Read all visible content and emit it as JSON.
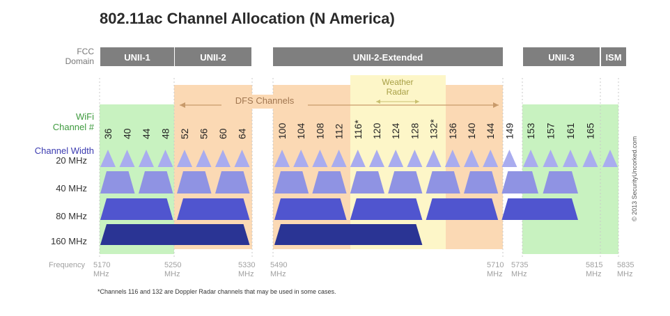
{
  "title": "802.11ac Channel Allocation (N America)",
  "row_labels": {
    "fcc_domain": [
      "FCC",
      "Domain"
    ],
    "wifi_channel": [
      "WiFi",
      "Channel #"
    ],
    "channel_width": "Channel Width",
    "frequency": "Frequency"
  },
  "domains": [
    {
      "label": "UNII-1"
    },
    {
      "label": "UNII-2"
    },
    {
      "label": "UNII-2-Extended"
    },
    {
      "label": "UNII-3"
    },
    {
      "label": "ISM"
    }
  ],
  "dfs_label": "DFS Channels",
  "weather_label": [
    "Weather",
    "Radar"
  ],
  "channels": [
    "36",
    "40",
    "44",
    "48",
    "52",
    "56",
    "60",
    "64",
    "100",
    "104",
    "108",
    "112",
    "116*",
    "120",
    "124",
    "128",
    "132*",
    "136",
    "140",
    "144",
    "149",
    "153",
    "157",
    "161",
    "165"
  ],
  "widths": [
    {
      "label": "20 MHz"
    },
    {
      "label": "40 MHz"
    },
    {
      "label": "80 MHz"
    },
    {
      "label": "160 MHz"
    }
  ],
  "frequencies": [
    {
      "value": "5170",
      "unit": "MHz"
    },
    {
      "value": "5250",
      "unit": "MHz"
    },
    {
      "value": "5330",
      "unit": "MHz"
    },
    {
      "value": "5490",
      "unit": "MHz"
    },
    {
      "value": "5710",
      "unit": "MHz"
    },
    {
      "value": "5735",
      "unit": "MHz"
    },
    {
      "value": "5815",
      "unit": "MHz"
    },
    {
      "value": "5835",
      "unit": "MHz"
    }
  ],
  "footnote": "*Channels 116 and 132 are Doppler Radar channels that may be used in some cases.",
  "credit": "© 2013 SecurityUncorked.com",
  "colors": {
    "domain_bar": "#7f7f7f",
    "dfs_fill": "#fbd9b4",
    "weather_fill": "#fdf6c8",
    "wifi_green_fill": "#c8f2c0",
    "wifi_label": "#3e9a3e",
    "width_label": "#3b3bb0",
    "w20": "#a9acef",
    "w40": "#8f93e3",
    "w80": "#5055cf",
    "w160": "#2a3494",
    "frequency_text": "#a0a0a0"
  }
}
